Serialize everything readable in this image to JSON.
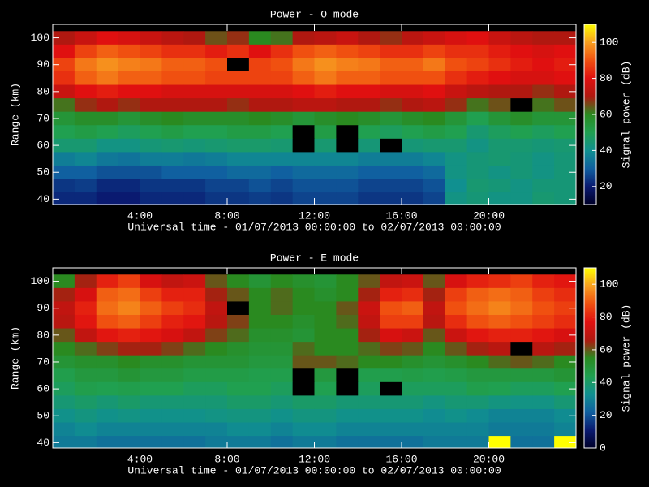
{
  "chart_data": [
    {
      "type": "heatmap",
      "title": "Power - O mode",
      "x_label": "Universal time - 01/07/2013 00:00:00 to 02/07/2013 00:00:00",
      "y_label": "Range (km)",
      "colorbar_label": "Signal power (dB)",
      "x": [
        0.5,
        1.5,
        2.5,
        3.5,
        4.5,
        5.5,
        6.5,
        7.5,
        8.5,
        9.5,
        10.5,
        11.5,
        12.5,
        13.5,
        14.5,
        15.5,
        16.5,
        17.5,
        18.5,
        19.5,
        20.5,
        21.5,
        22.5,
        23.5
      ],
      "y": [
        100,
        95,
        90,
        85,
        80,
        75,
        70,
        65,
        60,
        55,
        50,
        45,
        40
      ],
      "z": [
        [
          70,
          75,
          80,
          78,
          75,
          72,
          70,
          65,
          68,
          60,
          62,
          70,
          72,
          75,
          70,
          68,
          72,
          75,
          78,
          80,
          75,
          72,
          70,
          70
        ],
        [
          80,
          88,
          92,
          90,
          88,
          85,
          85,
          82,
          85,
          80,
          85,
          90,
          92,
          90,
          88,
          85,
          85,
          88,
          85,
          85,
          82,
          80,
          78,
          80
        ],
        [
          88,
          95,
          98,
          96,
          95,
          92,
          92,
          90,
          null,
          88,
          90,
          95,
          98,
          96,
          95,
          92,
          92,
          95,
          90,
          88,
          85,
          82,
          80,
          82
        ],
        [
          85,
          92,
          95,
          92,
          92,
          90,
          90,
          88,
          88,
          88,
          88,
          92,
          95,
          92,
          92,
          90,
          90,
          90,
          85,
          82,
          80,
          78,
          78,
          80
        ],
        [
          75,
          80,
          82,
          80,
          80,
          78,
          78,
          78,
          78,
          78,
          78,
          80,
          82,
          80,
          80,
          78,
          78,
          80,
          75,
          72,
          70,
          70,
          68,
          70
        ],
        [
          62,
          68,
          70,
          68,
          70,
          70,
          70,
          70,
          68,
          70,
          70,
          72,
          72,
          70,
          70,
          68,
          70,
          72,
          68,
          62,
          65,
          null,
          62,
          65
        ],
        [
          55,
          58,
          58,
          55,
          58,
          60,
          58,
          58,
          58,
          60,
          58,
          55,
          58,
          60,
          58,
          55,
          58,
          60,
          55,
          50,
          55,
          58,
          55,
          55
        ],
        [
          50,
          52,
          50,
          48,
          50,
          52,
          50,
          50,
          52,
          52,
          50,
          null,
          52,
          null,
          50,
          48,
          50,
          52,
          50,
          45,
          48,
          50,
          48,
          50
        ],
        [
          45,
          45,
          42,
          42,
          44,
          45,
          44,
          45,
          46,
          46,
          45,
          null,
          45,
          null,
          44,
          null,
          44,
          45,
          45,
          42,
          45,
          45,
          44,
          45
        ],
        [
          36,
          38,
          35,
          34,
          36,
          36,
          35,
          36,
          38,
          38,
          38,
          38,
          38,
          38,
          36,
          36,
          36,
          38,
          42,
          44,
          45,
          44,
          42,
          44
        ],
        [
          30,
          30,
          28,
          28,
          28,
          30,
          30,
          30,
          32,
          32,
          30,
          32,
          32,
          32,
          30,
          30,
          30,
          32,
          42,
          44,
          42,
          44,
          42,
          44
        ],
        [
          24,
          25,
          22,
          22,
          24,
          24,
          24,
          26,
          26,
          28,
          26,
          28,
          28,
          28,
          26,
          26,
          26,
          28,
          40,
          45,
          44,
          42,
          44,
          44
        ],
        [
          22,
          22,
          20,
          20,
          22,
          22,
          22,
          24,
          24,
          25,
          24,
          26,
          26,
          26,
          24,
          24,
          24,
          26,
          42,
          44,
          42,
          42,
          45,
          44
        ]
      ],
      "xlim": [
        0,
        24
      ],
      "ylim": [
        38,
        105
      ],
      "zlim": [
        10,
        110
      ],
      "xticks": [
        {
          "value": 4,
          "label": "4:00"
        },
        {
          "value": 8,
          "label": "8:00"
        },
        {
          "value": 12,
          "label": "12:00"
        },
        {
          "value": 16,
          "label": "16:00"
        },
        {
          "value": 20,
          "label": "20:00"
        }
      ],
      "yticks": [
        40,
        50,
        60,
        70,
        80,
        90,
        100
      ],
      "zticks": [
        20,
        40,
        60,
        80,
        100
      ],
      "colormap": [
        "#000028",
        "#0a1a70",
        "#1060a0",
        "#109090",
        "#20a050",
        "#2a8a20",
        "#b01810",
        "#e01010",
        "#f05010",
        "#f8a020",
        "#ffff00"
      ],
      "missing_color": "#000000"
    },
    {
      "type": "heatmap",
      "title": "Power - E mode",
      "x_label": "Universal time - 01/07/2013 00:00:00 to 02/07/2013 00:00:00",
      "y_label": "Range (km)",
      "colorbar_label": "Signal power (dB)",
      "x": [
        0.5,
        1.5,
        2.5,
        3.5,
        4.5,
        5.5,
        6.5,
        7.5,
        8.5,
        9.5,
        10.5,
        11.5,
        12.5,
        13.5,
        14.5,
        15.5,
        16.5,
        17.5,
        18.5,
        19.5,
        20.5,
        21.5,
        22.5,
        23.5
      ],
      "y": [
        100,
        95,
        90,
        85,
        80,
        75,
        70,
        65,
        60,
        55,
        50,
        45,
        40
      ],
      "z": [
        [
          55,
          65,
          80,
          85,
          75,
          70,
          72,
          60,
          55,
          50,
          55,
          52,
          50,
          55,
          60,
          70,
          72,
          60,
          75,
          80,
          82,
          85,
          80,
          78
        ],
        [
          65,
          75,
          90,
          92,
          85,
          80,
          80,
          65,
          60,
          55,
          58,
          55,
          52,
          55,
          65,
          80,
          82,
          65,
          85,
          90,
          92,
          90,
          85,
          82
        ],
        [
          70,
          80,
          92,
          95,
          90,
          85,
          82,
          70,
          null,
          55,
          58,
          55,
          55,
          60,
          72,
          88,
          90,
          70,
          88,
          92,
          95,
          92,
          88,
          85
        ],
        [
          68,
          78,
          88,
          90,
          85,
          80,
          78,
          68,
          62,
          55,
          55,
          52,
          55,
          58,
          70,
          85,
          85,
          68,
          82,
          88,
          90,
          88,
          85,
          82
        ],
        [
          60,
          70,
          78,
          80,
          78,
          75,
          70,
          62,
          58,
          52,
          52,
          50,
          55,
          55,
          65,
          75,
          72,
          60,
          72,
          78,
          80,
          80,
          78,
          75
        ],
        [
          55,
          58,
          62,
          65,
          65,
          62,
          58,
          55,
          52,
          50,
          50,
          58,
          55,
          55,
          58,
          62,
          60,
          55,
          60,
          65,
          68,
          null,
          68,
          65
        ],
        [
          50,
          52,
          52,
          55,
          52,
          52,
          50,
          50,
          50,
          48,
          48,
          60,
          60,
          58,
          55,
          55,
          52,
          50,
          52,
          55,
          58,
          60,
          58,
          55
        ],
        [
          45,
          48,
          48,
          50,
          48,
          48,
          46,
          46,
          46,
          45,
          45,
          null,
          48,
          null,
          45,
          45,
          46,
          45,
          46,
          48,
          48,
          48,
          48,
          50
        ],
        [
          42,
          45,
          44,
          45,
          44,
          44,
          42,
          42,
          44,
          44,
          42,
          null,
          44,
          null,
          42,
          null,
          42,
          42,
          42,
          45,
          44,
          42,
          42,
          44
        ],
        [
          38,
          40,
          38,
          40,
          38,
          38,
          38,
          38,
          40,
          40,
          38,
          40,
          40,
          38,
          38,
          38,
          38,
          36,
          38,
          38,
          36,
          35,
          35,
          38
        ],
        [
          34,
          36,
          34,
          35,
          34,
          34,
          34,
          35,
          36,
          36,
          34,
          36,
          36,
          34,
          34,
          34,
          34,
          32,
          34,
          32,
          30,
          30,
          30,
          32
        ],
        [
          30,
          32,
          30,
          30,
          30,
          30,
          30,
          30,
          32,
          32,
          30,
          32,
          32,
          30,
          30,
          30,
          30,
          30,
          30,
          30,
          28,
          28,
          28,
          30
        ],
        [
          28,
          28,
          26,
          26,
          26,
          26,
          26,
          28,
          28,
          28,
          26,
          28,
          28,
          26,
          26,
          26,
          26,
          28,
          28,
          28,
          110,
          26,
          26,
          110
        ]
      ],
      "xlim": [
        0,
        24
      ],
      "ylim": [
        38,
        105
      ],
      "zlim": [
        0,
        110
      ],
      "xticks": [
        {
          "value": 4,
          "label": "4:00"
        },
        {
          "value": 8,
          "label": "8:00"
        },
        {
          "value": 12,
          "label": "12:00"
        },
        {
          "value": 16,
          "label": "16:00"
        },
        {
          "value": 20,
          "label": "20:00"
        }
      ],
      "yticks": [
        40,
        50,
        60,
        70,
        80,
        90,
        100
      ],
      "zticks": [
        0,
        20,
        40,
        60,
        80,
        100
      ],
      "colormap": [
        "#000028",
        "#0a1a70",
        "#1060a0",
        "#109090",
        "#20a050",
        "#2a8a20",
        "#b01810",
        "#e01010",
        "#f05010",
        "#f8a020",
        "#ffff00"
      ],
      "missing_color": "#000000"
    }
  ]
}
